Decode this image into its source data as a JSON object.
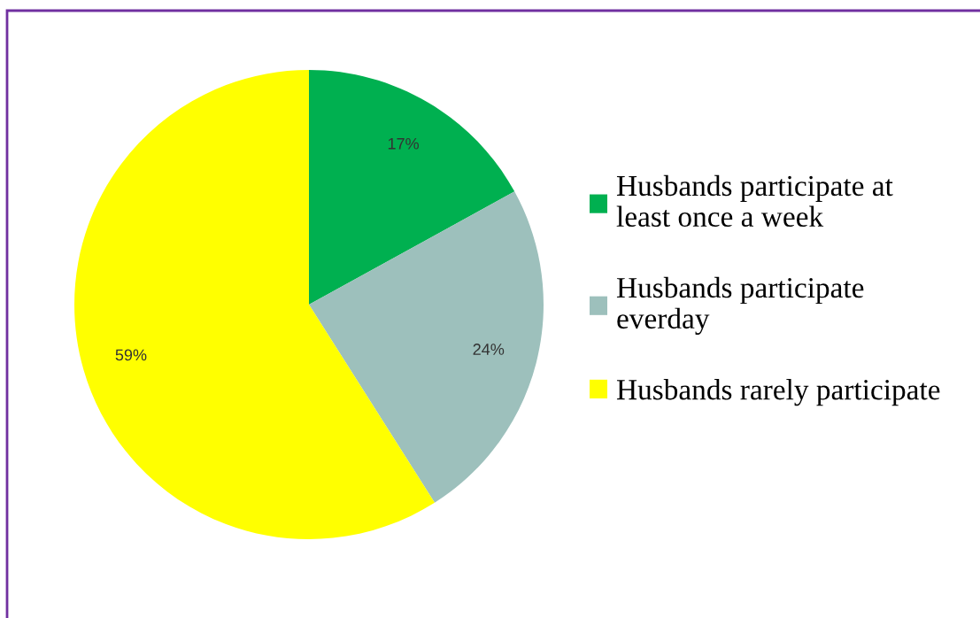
{
  "chart_data": {
    "type": "pie",
    "categories": [
      "Husbands participate at\nleast once a week",
      "Husbands participate\neverday",
      "Husbands rarely participate"
    ],
    "values": [
      17,
      24,
      59
    ],
    "value_labels": [
      "17%",
      "24%",
      "59%"
    ],
    "colors": [
      "#00b050",
      "#9dc0bc",
      "#ffff00"
    ],
    "legend": "right"
  }
}
